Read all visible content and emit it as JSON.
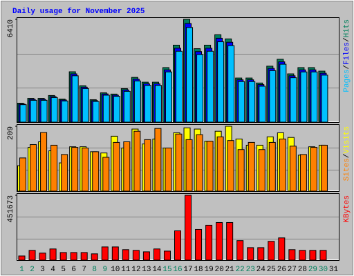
{
  "chart_data": {
    "type": "bar",
    "title": "Daily usage for November 2025",
    "categories": [
      "1",
      "2",
      "3",
      "4",
      "5",
      "6",
      "7",
      "8",
      "9",
      "10",
      "11",
      "12",
      "13",
      "14",
      "15",
      "16",
      "17",
      "18",
      "19",
      "20",
      "21",
      "22",
      "23",
      "24",
      "25",
      "26",
      "27",
      "28",
      "29",
      "30",
      "31"
    ],
    "category_colors": [
      "#00805c",
      "#00805c",
      "#000000",
      "#000000",
      "#000000",
      "#000000",
      "#000000",
      "#00805c",
      "#00805c",
      "#000000",
      "#000000",
      "#000000",
      "#000000",
      "#000000",
      "#00805c",
      "#00805c",
      "#000000",
      "#000000",
      "#000000",
      "#000000",
      "#000000",
      "#00805c",
      "#00805c",
      "#000000",
      "#000000",
      "#000000",
      "#000000",
      "#000000",
      "#00805c",
      "#00805c",
      "#000000"
    ],
    "legend_separator": "/",
    "grid": true,
    "panels": [
      {
        "ylim": [
          0,
          6410
        ],
        "yticks": [
          6410
        ],
        "series": [
          {
            "name": "Hits",
            "color": "#00805c",
            "values": [
              1180,
              1480,
              1480,
              1660,
              1440,
              3140,
              2270,
              1400,
              1830,
              1750,
              2090,
              2790,
              2490,
              2490,
              3400,
              4800,
              6410,
              4580,
              4800,
              5450,
              5190,
              2750,
              2750,
              2440,
              3490,
              3920,
              3010,
              3400,
              3400,
              3180,
              0
            ]
          },
          {
            "name": "Files",
            "color": "#0000ff",
            "values": [
              1130,
              1420,
              1420,
              1590,
              1380,
              3010,
              2180,
              1340,
              1760,
              1680,
              2010,
              2680,
              2390,
              2390,
              3260,
              4610,
              6150,
              4400,
              4610,
              5230,
              4980,
              2640,
              2640,
              2340,
              3350,
              3760,
              2890,
              3260,
              3260,
              3050,
              0
            ]
          },
          {
            "name": "Pages",
            "color": "#00c0ff",
            "values": [
              1090,
              1360,
              1360,
              1530,
              1320,
              2890,
              2090,
              1290,
              1680,
              1610,
              1920,
              2570,
              2290,
              2290,
              3130,
              4420,
              5900,
              4210,
              4420,
              5010,
              4770,
              2530,
              2530,
              2240,
              3210,
              3610,
              2770,
              3130,
              3130,
              2930,
              0
            ]
          }
        ]
      },
      {
        "ylim": [
          0,
          209
        ],
        "yticks": [
          209
        ],
        "series": [
          {
            "name": "Visits",
            "color": "#ffff00",
            "values": [
              82,
              141,
              159,
              130,
              91,
              143,
              143,
              127,
              123,
              177,
              139,
              200,
              152,
              168,
              139,
              188,
              204,
              200,
              161,
              193,
              209,
              168,
              148,
              148,
              175,
              188,
              173,
              116,
              143,
              148,
              0
            ]
          },
          {
            "name": "Sites",
            "color": "#ff8000",
            "values": [
              107,
              150,
              189,
              148,
              118,
              141,
              139,
              127,
              109,
              157,
              159,
              193,
              166,
              202,
              139,
              184,
              166,
              182,
              161,
              175,
              163,
              134,
              157,
              134,
              157,
              168,
              145,
              118,
              141,
              148,
              0
            ]
          }
        ]
      },
      {
        "ylim": [
          0,
          451673
        ],
        "yticks": [
          451673
        ],
        "series": [
          {
            "name": "KBytes",
            "color": "#ff0000",
            "values": [
              29000,
              68000,
              49000,
              78000,
              53000,
              53000,
              53000,
              44000,
              92000,
              92000,
              73000,
              68000,
              58000,
              78000,
              63000,
              204000,
              451673,
              214000,
              243000,
              262000,
              262000,
              136000,
              87000,
              87000,
              131000,
              155000,
              73000,
              68000,
              68000,
              68000,
              0
            ]
          }
        ]
      }
    ]
  }
}
